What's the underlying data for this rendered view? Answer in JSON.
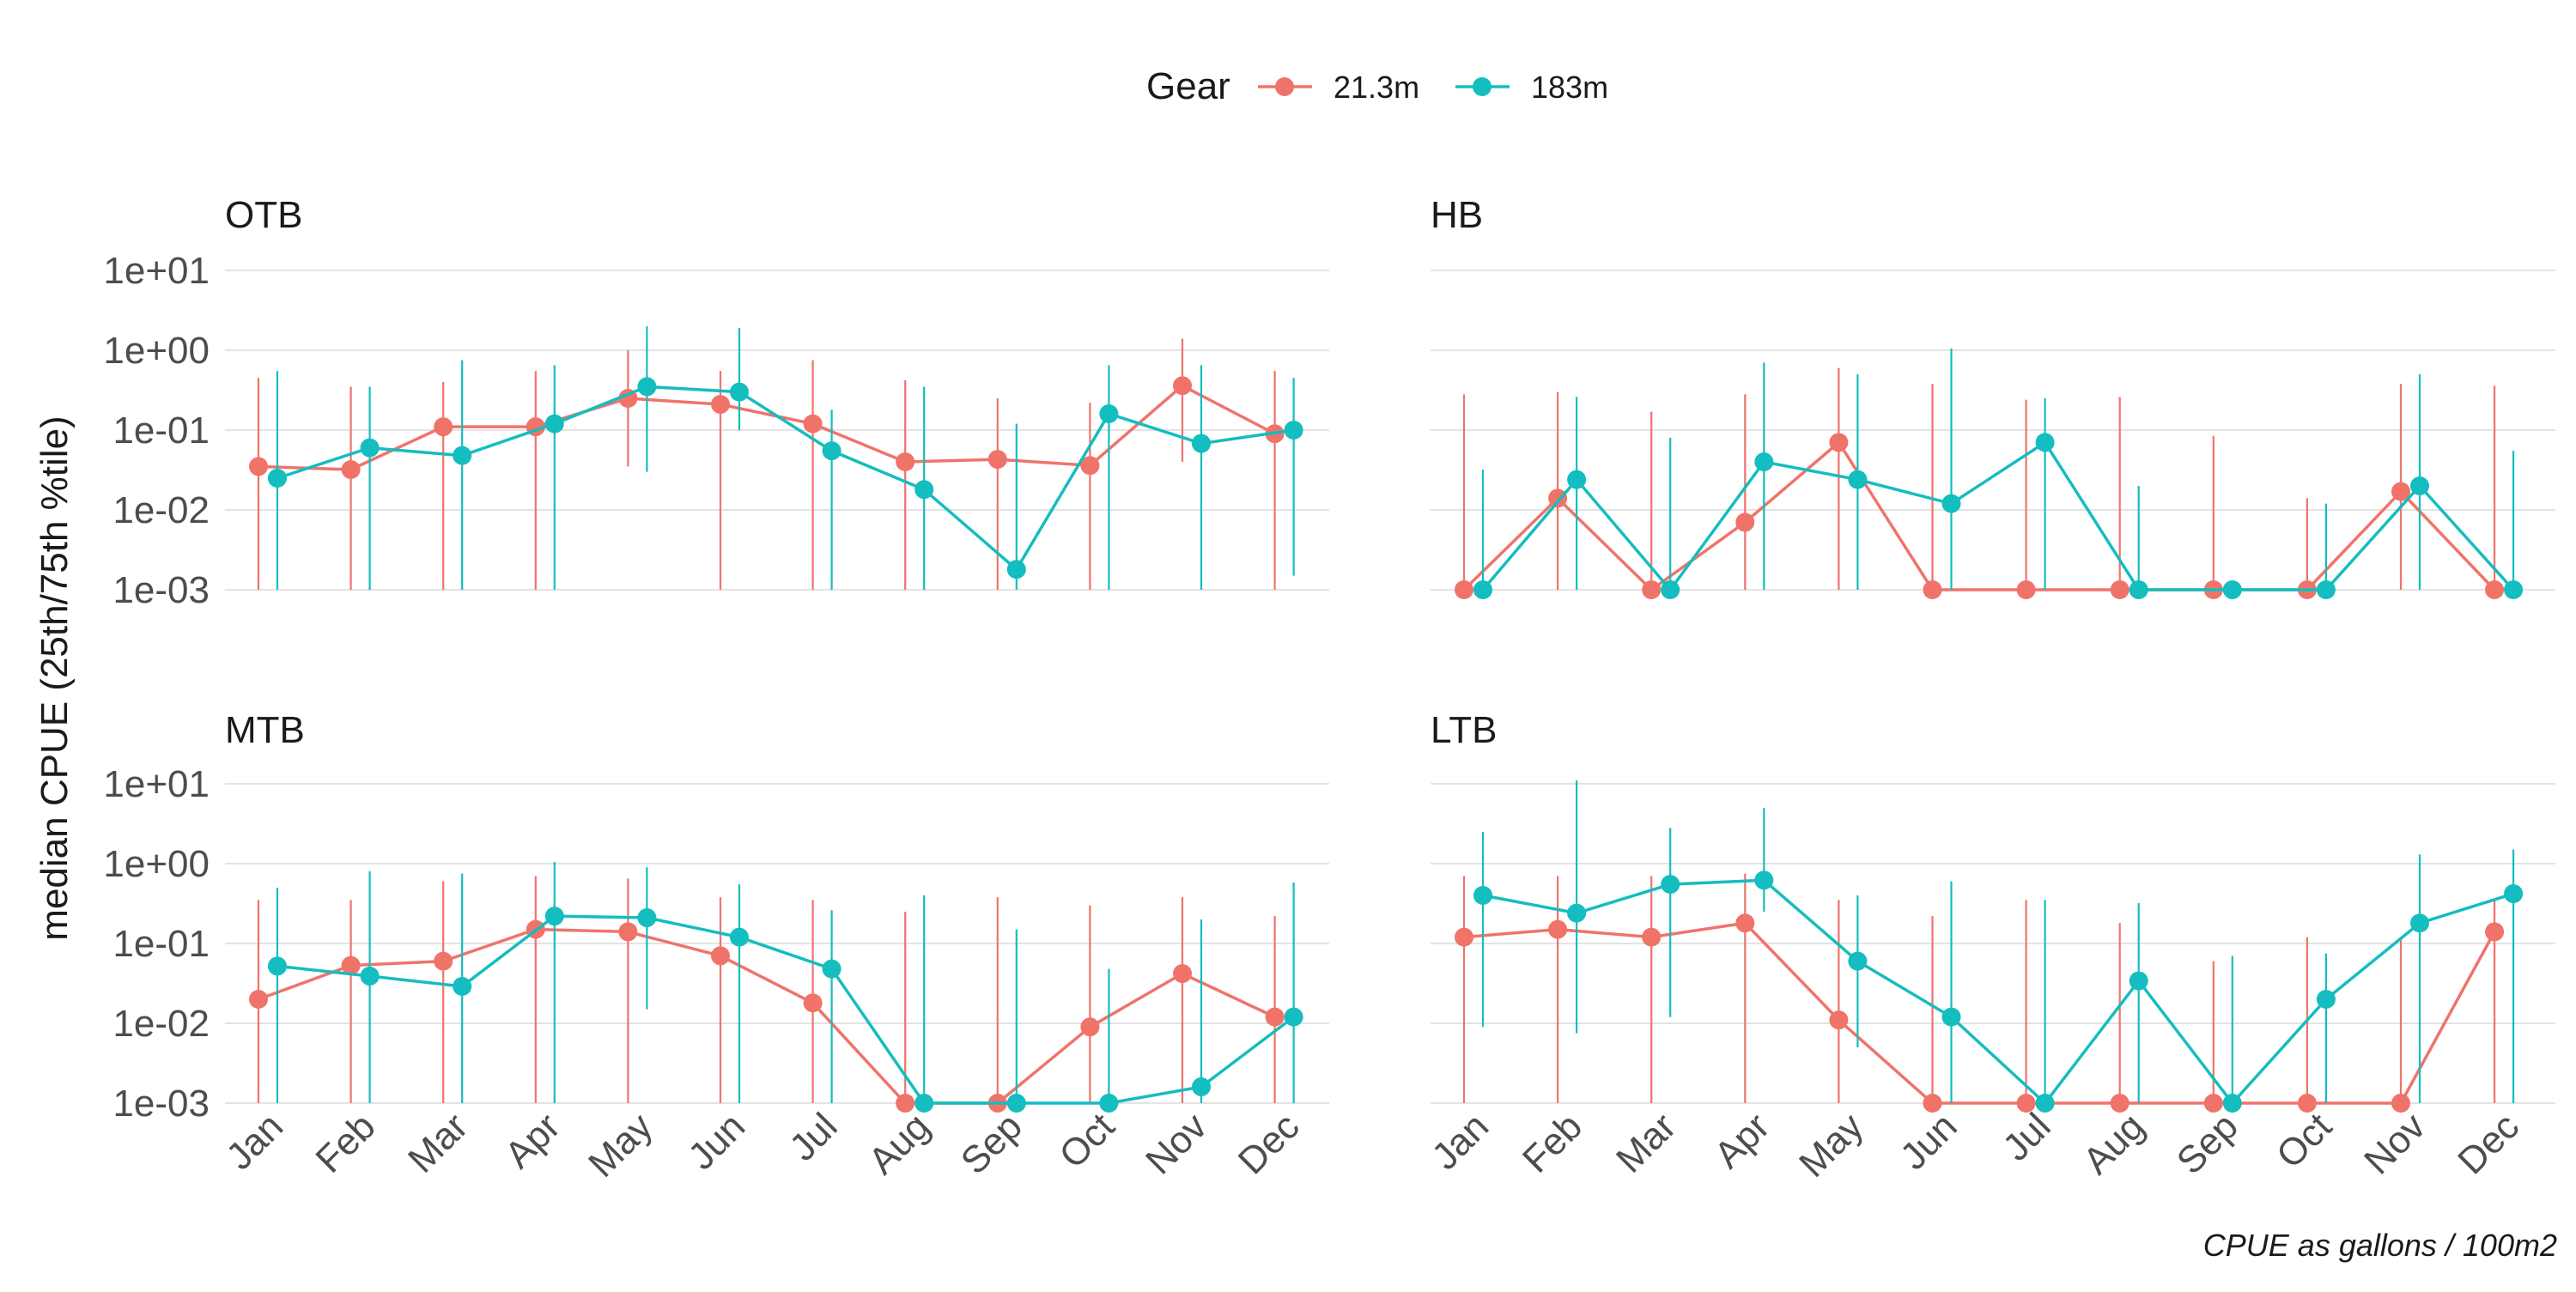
{
  "legend": {
    "title": "Gear",
    "placement": "top-center",
    "entries": [
      {
        "name": "21.3m",
        "color": "#F0736A"
      },
      {
        "name": "183m",
        "color": "#14BDBF"
      }
    ]
  },
  "axis_label_y": "median CPUE (25th/75th %tile)",
  "caption": "CPUE as gallons / 100m2",
  "chart_data": [
    {
      "type": "line",
      "panel_title": "OTB",
      "log_scale": true,
      "ylim": [
        0.001,
        10
      ],
      "yticks": [
        {
          "value": 10,
          "label": "1e+01"
        },
        {
          "value": 1,
          "label": "1e+00"
        },
        {
          "value": 0.1,
          "label": "1e-01"
        },
        {
          "value": 0.01,
          "label": "1e-02"
        },
        {
          "value": 0.001,
          "label": "1e-03"
        }
      ],
      "categories": [
        "Jan",
        "Feb",
        "Mar",
        "Apr",
        "May",
        "Jun",
        "Jul",
        "Aug",
        "Sep",
        "Oct",
        "Nov",
        "Dec"
      ],
      "show_x_tick_labels": false,
      "grid": true,
      "series": [
        {
          "name": "21.3m",
          "color": "#F0736A",
          "values": [
            0.035,
            0.032,
            0.11,
            0.11,
            0.25,
            0.21,
            0.12,
            0.04,
            0.043,
            0.036,
            0.36,
            0.09
          ],
          "lower": [
            0.001,
            0.001,
            0.001,
            0.001,
            0.035,
            0.001,
            0.001,
            0.001,
            0.001,
            0.001,
            0.04,
            0.001
          ],
          "upper": [
            0.45,
            0.35,
            0.4,
            0.55,
            1.0,
            0.55,
            0.75,
            0.42,
            0.25,
            0.22,
            1.4,
            0.55
          ]
        },
        {
          "name": "183m",
          "color": "#14BDBF",
          "values": [
            0.025,
            0.06,
            0.048,
            0.12,
            0.35,
            0.3,
            0.055,
            0.018,
            0.0018,
            0.16,
            0.068,
            0.1
          ],
          "lower": [
            0.001,
            0.001,
            0.001,
            0.001,
            0.03,
            0.1,
            0.001,
            0.001,
            0.001,
            0.001,
            0.001,
            0.0015
          ],
          "upper": [
            0.55,
            0.35,
            0.75,
            0.65,
            2.0,
            1.9,
            0.18,
            0.35,
            0.12,
            0.65,
            0.65,
            0.45
          ]
        }
      ]
    },
    {
      "type": "line",
      "panel_title": "HB",
      "log_scale": true,
      "ylim": [
        0.001,
        10
      ],
      "categories": [
        "Jan",
        "Feb",
        "Mar",
        "Apr",
        "May",
        "Jun",
        "Jul",
        "Aug",
        "Sep",
        "Oct",
        "Nov",
        "Dec"
      ],
      "show_x_tick_labels": false,
      "grid": true,
      "series": [
        {
          "name": "21.3m",
          "color": "#F0736A",
          "values": [
            0.001,
            0.014,
            0.001,
            0.007,
            0.07,
            0.001,
            0.001,
            0.001,
            0.001,
            0.001,
            0.017,
            0.001
          ],
          "lower": [
            0.001,
            0.001,
            0.001,
            0.001,
            0.001,
            0.001,
            0.001,
            0.001,
            0.001,
            0.001,
            0.001,
            0.001
          ],
          "upper": [
            0.28,
            0.3,
            0.17,
            0.28,
            0.6,
            0.38,
            0.24,
            0.26,
            0.085,
            0.014,
            0.38,
            0.36
          ]
        },
        {
          "name": "183m",
          "color": "#14BDBF",
          "values": [
            0.001,
            0.024,
            0.001,
            0.04,
            0.024,
            0.012,
            0.07,
            0.001,
            0.001,
            0.001,
            0.02,
            0.001
          ],
          "lower": [
            0.001,
            0.001,
            0.001,
            0.001,
            0.001,
            0.001,
            0.001,
            0.001,
            0.001,
            0.001,
            0.001,
            0.001
          ],
          "upper": [
            0.032,
            0.26,
            0.08,
            0.7,
            0.5,
            1.05,
            0.25,
            0.02,
            0.001,
            0.012,
            0.5,
            0.055
          ]
        }
      ]
    },
    {
      "type": "line",
      "panel_title": "MTB",
      "log_scale": true,
      "ylim": [
        0.001,
        10
      ],
      "yticks": [
        {
          "value": 10,
          "label": "1e+01"
        },
        {
          "value": 1,
          "label": "1e+00"
        },
        {
          "value": 0.1,
          "label": "1e-01"
        },
        {
          "value": 0.01,
          "label": "1e-02"
        },
        {
          "value": 0.001,
          "label": "1e-03"
        }
      ],
      "categories": [
        "Jan",
        "Feb",
        "Mar",
        "Apr",
        "May",
        "Jun",
        "Jul",
        "Aug",
        "Sep",
        "Oct",
        "Nov",
        "Dec"
      ],
      "show_x_tick_labels": true,
      "grid": true,
      "series": [
        {
          "name": "21.3m",
          "color": "#F0736A",
          "values": [
            0.02,
            0.053,
            0.06,
            0.15,
            0.14,
            0.07,
            0.018,
            0.001,
            0.001,
            0.009,
            0.042,
            0.012
          ],
          "lower": [
            0.001,
            0.001,
            0.001,
            0.001,
            0.001,
            0.001,
            0.001,
            0.001,
            0.001,
            0.001,
            0.001,
            0.001
          ],
          "upper": [
            0.35,
            0.35,
            0.6,
            0.7,
            0.65,
            0.38,
            0.35,
            0.25,
            0.38,
            0.3,
            0.38,
            0.22
          ]
        },
        {
          "name": "183m",
          "color": "#14BDBF",
          "values": [
            0.052,
            0.039,
            0.029,
            0.22,
            0.21,
            0.12,
            0.048,
            0.001,
            0.001,
            0.001,
            0.0016,
            0.012
          ],
          "lower": [
            0.001,
            0.001,
            0.001,
            0.001,
            0.015,
            0.001,
            0.001,
            0.001,
            0.001,
            0.001,
            0.001,
            0.001
          ],
          "upper": [
            0.5,
            0.8,
            0.75,
            1.05,
            0.9,
            0.55,
            0.26,
            0.4,
            0.15,
            0.048,
            0.2,
            0.58
          ]
        }
      ]
    },
    {
      "type": "line",
      "panel_title": "LTB",
      "log_scale": true,
      "ylim": [
        0.001,
        10
      ],
      "categories": [
        "Jan",
        "Feb",
        "Mar",
        "Apr",
        "May",
        "Jun",
        "Jul",
        "Aug",
        "Sep",
        "Oct",
        "Nov",
        "Dec"
      ],
      "show_x_tick_labels": true,
      "grid": true,
      "series": [
        {
          "name": "21.3m",
          "color": "#F0736A",
          "values": [
            0.12,
            0.15,
            0.12,
            0.18,
            0.011,
            0.001,
            0.001,
            0.001,
            0.001,
            0.001,
            0.001,
            0.14
          ],
          "lower": [
            0.001,
            0.001,
            0.001,
            0.001,
            0.001,
            0.001,
            0.001,
            0.001,
            0.001,
            0.001,
            0.001,
            0.001
          ],
          "upper": [
            0.7,
            0.7,
            0.7,
            0.75,
            0.35,
            0.22,
            0.35,
            0.18,
            0.06,
            0.12,
            0.12,
            0.35
          ]
        },
        {
          "name": "183m",
          "color": "#14BDBF",
          "values": [
            0.4,
            0.24,
            0.55,
            0.62,
            0.06,
            0.012,
            0.001,
            0.034,
            0.001,
            0.02,
            0.18,
            0.42
          ],
          "lower": [
            0.009,
            0.0075,
            0.012,
            0.25,
            0.005,
            0.001,
            0.001,
            0.001,
            0.001,
            0.001,
            0.001,
            0.001
          ],
          "upper": [
            2.5,
            11.0,
            2.8,
            5.0,
            0.4,
            0.6,
            0.35,
            0.32,
            0.07,
            0.075,
            1.3,
            1.5
          ]
        }
      ]
    }
  ]
}
